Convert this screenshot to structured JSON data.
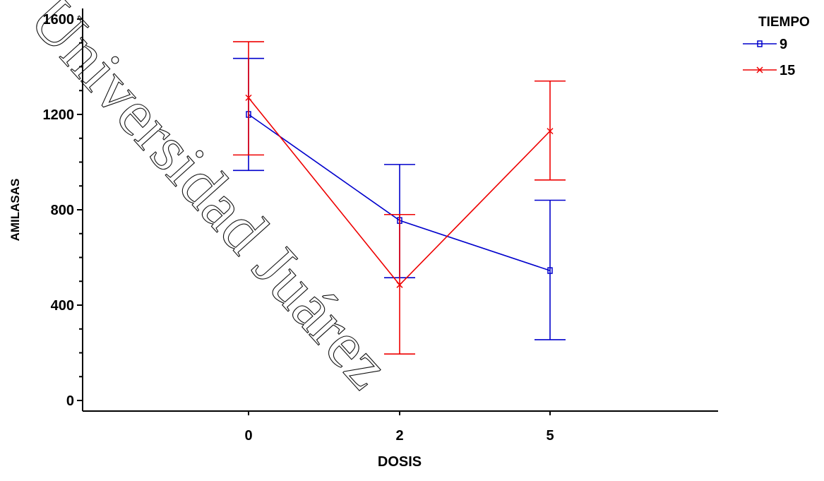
{
  "chart_data": {
    "type": "line",
    "xlabel": "DOSIS",
    "ylabel": "AMILASAS",
    "categories": [
      "0",
      "2",
      "5"
    ],
    "ylim": [
      0,
      1600
    ],
    "yticks": [
      0,
      400,
      800,
      1200,
      1600
    ],
    "grid": false,
    "legend": {
      "title": "TIEMPO",
      "position": "top-right"
    },
    "series": [
      {
        "name": "9",
        "color": "#0000cc",
        "marker": "square",
        "values": [
          1200,
          755,
          545
        ],
        "lower": [
          965,
          515,
          255
        ],
        "upper": [
          1435,
          990,
          840
        ]
      },
      {
        "name": "15",
        "color": "#ee0000",
        "marker": "x",
        "values": [
          1270,
          485,
          1130
        ],
        "lower": [
          1030,
          195,
          925
        ],
        "upper": [
          1505,
          780,
          1340
        ]
      }
    ]
  },
  "watermark": "Universidad Juárez"
}
